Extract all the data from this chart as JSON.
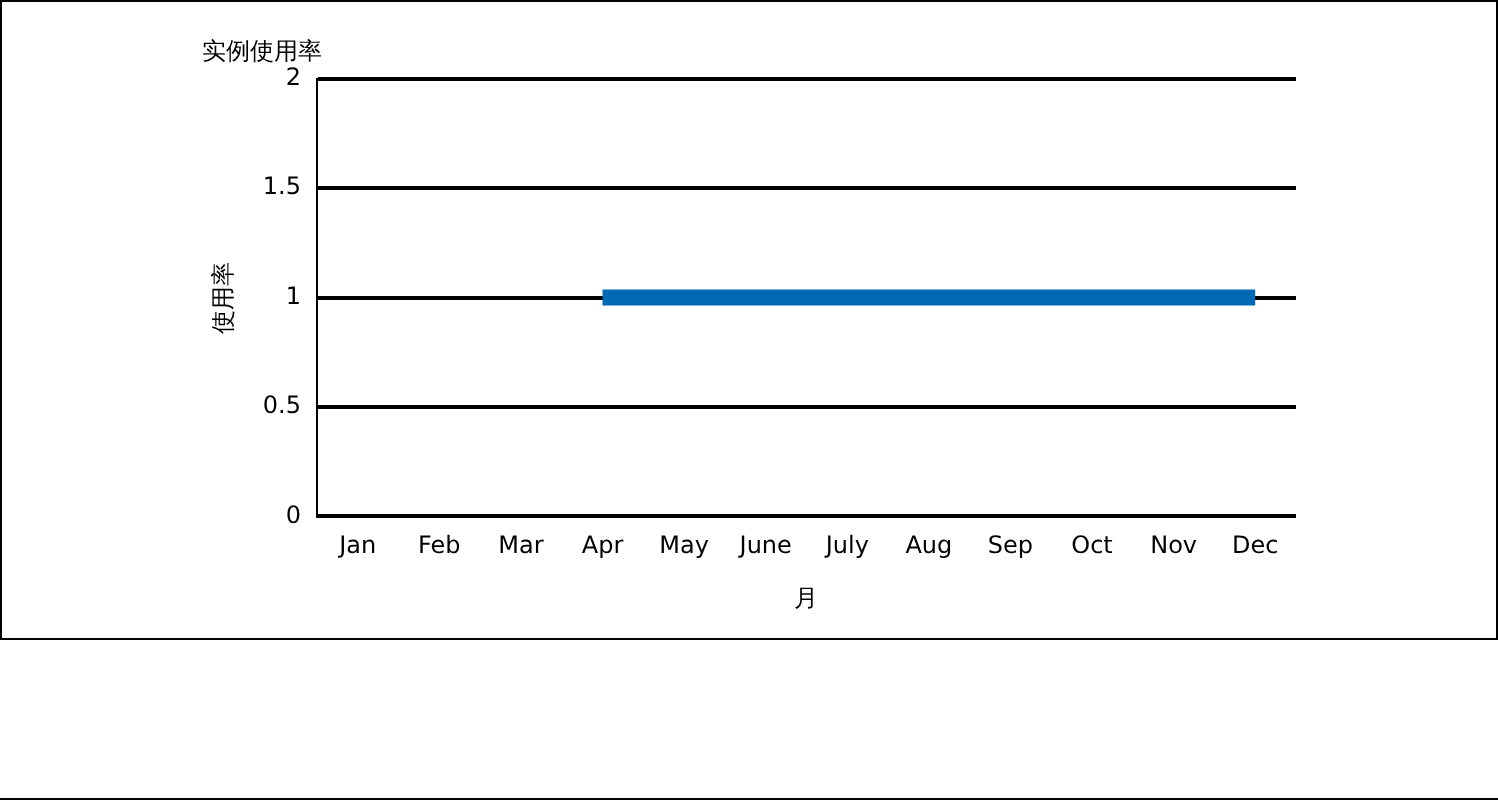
{
  "chart_data": {
    "type": "line",
    "title": "实例使用率",
    "xlabel": "月",
    "ylabel": "使用率",
    "categories": [
      "Jan",
      "Feb",
      "Mar",
      "Apr",
      "May",
      "June",
      "July",
      "Aug",
      "Sep",
      "Oct",
      "Nov",
      "Dec"
    ],
    "series": [
      {
        "color": "#0068b5",
        "values": [
          null,
          null,
          null,
          1,
          1,
          1,
          1,
          1,
          1,
          1,
          1,
          1
        ]
      }
    ],
    "ylim": [
      0,
      2
    ],
    "yticks": [
      0,
      0.5,
      1,
      1.5,
      2
    ],
    "grid": "y",
    "legend": false,
    "marker": "none",
    "line_style": "solid"
  }
}
